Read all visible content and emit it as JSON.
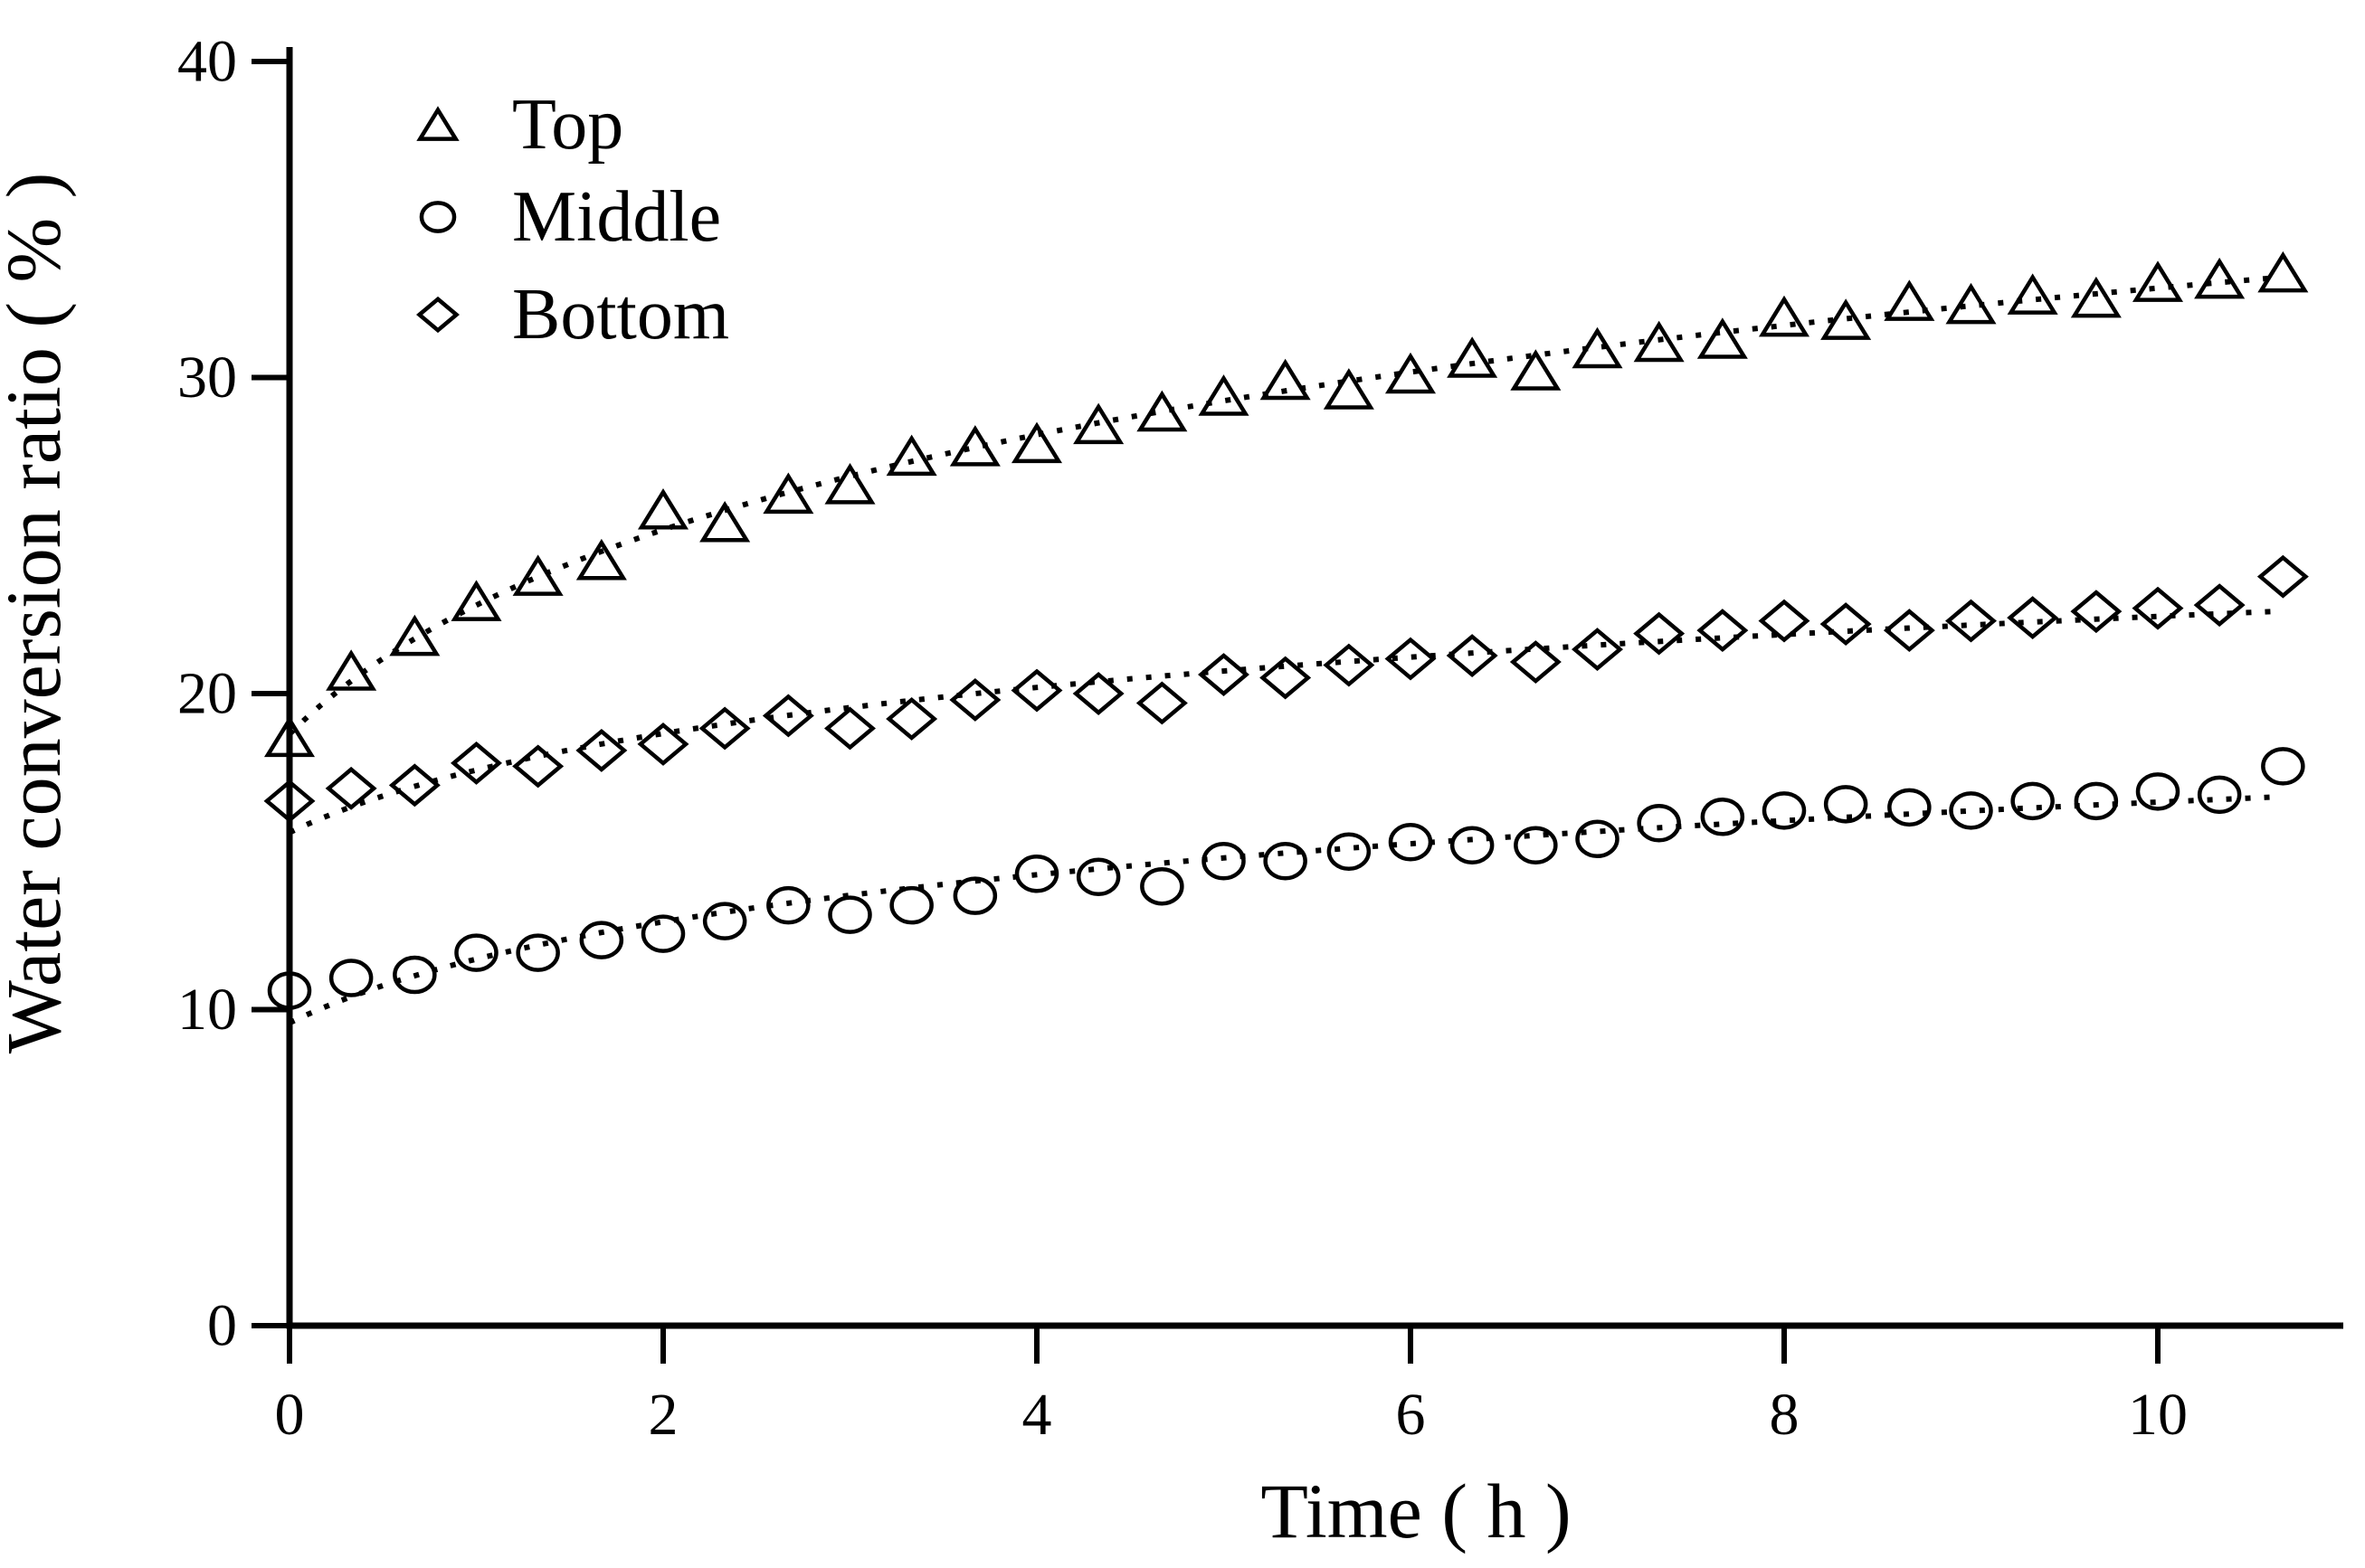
{
  "figure": {
    "background_color": "#ffffff",
    "foreground_color": "#000000",
    "kind": "scientific scatter plot with dotted trend lines"
  },
  "chart_data": {
    "type": "scatter",
    "title": "",
    "xlabel": "Time ( h )",
    "ylabel": "Water conversion ratio ( % )",
    "xlim": [
      0,
      11
    ],
    "ylim": [
      0,
      40
    ],
    "xticks": [
      0,
      2,
      4,
      6,
      8,
      10
    ],
    "xtick_labels": [
      "0",
      "2",
      "4",
      "6",
      "8",
      "10"
    ],
    "yticks": [
      0,
      10,
      20,
      30,
      40
    ],
    "ytick_labels": [
      "0",
      "10",
      "20",
      "30",
      "40"
    ],
    "grid": false,
    "legend_position": "upper-left-inside",
    "trend_line_style": "dotted, least-squares logarithmic fit v = a + b*ln(1+t)",
    "x": [
      0,
      0.33,
      0.67,
      1,
      1.33,
      1.67,
      2,
      2.33,
      2.67,
      3,
      3.33,
      3.67,
      4,
      4.33,
      4.67,
      5,
      5.33,
      5.67,
      6,
      6.33,
      6.67,
      7,
      7.33,
      7.67,
      8,
      8.33,
      8.67,
      9,
      9.33,
      9.67,
      10,
      10.33,
      10.67
    ],
    "series": [
      {
        "name": "Top",
        "marker": "triangle",
        "values": [
          18.6,
          20.7,
          21.8,
          22.9,
          23.7,
          24.2,
          25.8,
          25.4,
          26.3,
          26.6,
          27.5,
          27.8,
          27.9,
          28.5,
          28.9,
          29.4,
          29.9,
          29.6,
          30.1,
          30.6,
          30.2,
          30.9,
          31.1,
          31.2,
          31.9,
          31.8,
          32.4,
          32.3,
          32.6,
          32.5,
          33.0,
          33.1,
          33.3
        ]
      },
      {
        "name": "Middle",
        "marker": "circle",
        "values": [
          10.6,
          11.0,
          11.1,
          11.8,
          11.8,
          12.2,
          12.4,
          12.8,
          13.3,
          13.0,
          13.3,
          13.6,
          14.3,
          14.2,
          13.9,
          14.7,
          14.7,
          15.0,
          15.3,
          15.2,
          15.2,
          15.4,
          15.9,
          16.1,
          16.3,
          16.5,
          16.4,
          16.3,
          16.6,
          16.6,
          16.9,
          16.8,
          17.7
        ]
      },
      {
        "name": "Bottom",
        "marker": "diamond",
        "values": [
          16.6,
          17.0,
          17.1,
          17.8,
          17.7,
          18.2,
          18.4,
          18.9,
          19.3,
          18.9,
          19.2,
          19.8,
          20.1,
          20.0,
          19.7,
          20.6,
          20.5,
          20.9,
          21.1,
          21.2,
          21.0,
          21.4,
          21.9,
          22.0,
          22.3,
          22.2,
          22.0,
          22.3,
          22.4,
          22.6,
          22.7,
          22.8,
          23.7
        ]
      }
    ]
  },
  "legend": {
    "entries": [
      {
        "label": "Top",
        "marker": "triangle"
      },
      {
        "label": "Middle",
        "marker": "circle"
      },
      {
        "label": "Bottom",
        "marker": "diamond"
      }
    ]
  }
}
